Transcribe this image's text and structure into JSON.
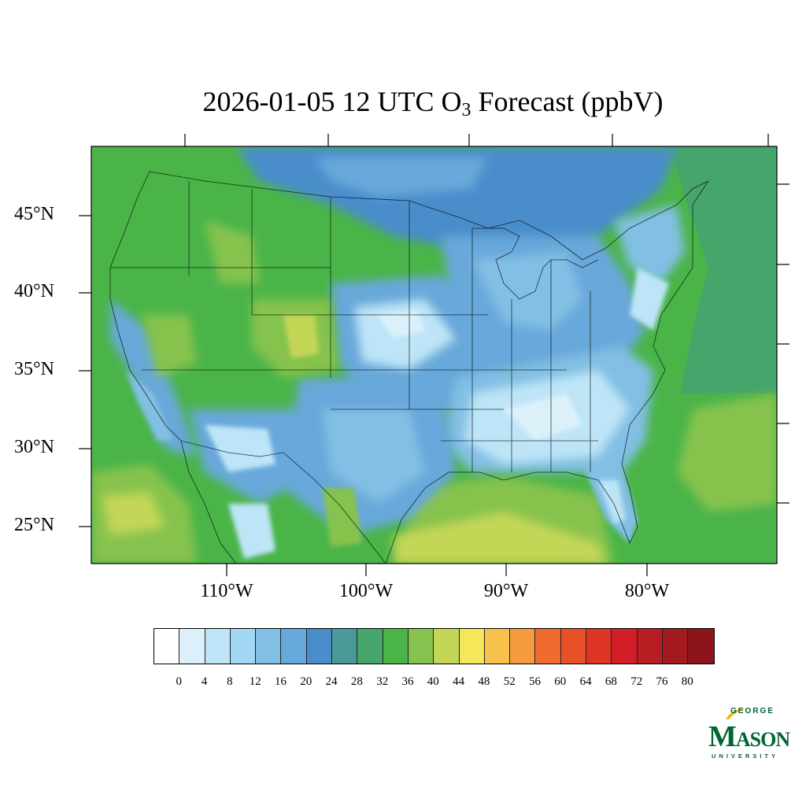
{
  "title_prefix": "2026-01-05 12 UTC O",
  "title_subscript": "3",
  "title_suffix": " Forecast (ppbV)",
  "lat_labels": [
    "45°N",
    "40°N",
    "35°N",
    "30°N",
    "25°N"
  ],
  "lon_labels": [
    "110°W",
    "100°W",
    "90°W",
    "80°W"
  ],
  "colorbar": {
    "ticks": [
      "0",
      "4",
      "8",
      "12",
      "16",
      "20",
      "24",
      "28",
      "32",
      "36",
      "40",
      "44",
      "48",
      "52",
      "56",
      "60",
      "64",
      "68",
      "72",
      "76",
      "80"
    ],
    "colors": [
      "#ffffff",
      "#dcf0fa",
      "#bde5f7",
      "#a2d8f3",
      "#82bfe4",
      "#67a8da",
      "#4a8dcb",
      "#4a9a9a",
      "#46a56a",
      "#4ab449",
      "#86c34e",
      "#c4d656",
      "#f5e65a",
      "#f8c14c",
      "#f59a3e",
      "#f06b2e",
      "#e85128",
      "#de3527",
      "#d21f27",
      "#b81d23",
      "#a31a1f",
      "#8c141a"
    ]
  },
  "logo": {
    "top": "GEORGE",
    "main_big": "M",
    "main_small": "ASON",
    "bottom": "UNIVERSITY"
  }
}
